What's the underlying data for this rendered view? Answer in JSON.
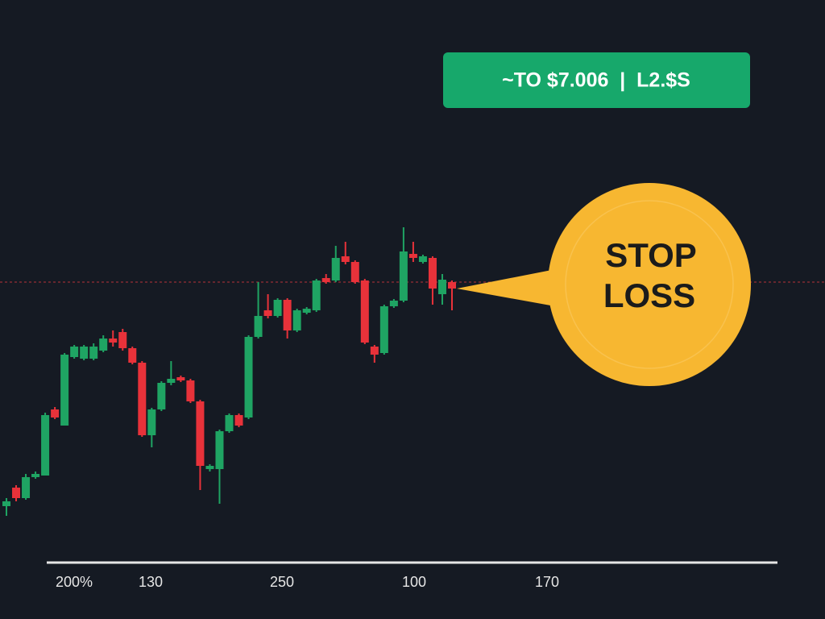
{
  "chart_data": {
    "type": "candlestick",
    "banner": "~TO $7.006  |  L2.$S",
    "annotation": [
      "STOP",
      "LOSS"
    ],
    "x_axis_labels": [
      "200%",
      "130",
      "250",
      "100",
      "170"
    ],
    "ylim": [
      0,
      700
    ],
    "reference_line": 350,
    "up_color": "#1fa463",
    "down_color": "#e8323a",
    "open": [
      72,
      95,
      82,
      108,
      110,
      192,
      172,
      257,
      255,
      255,
      265,
      280,
      288,
      268,
      250,
      160,
      192,
      225,
      232,
      228,
      202,
      118,
      118,
      165,
      185,
      182,
      282,
      315,
      308,
      328,
      290,
      312,
      315,
      355,
      352,
      382,
      375,
      352,
      270,
      262,
      320,
      327,
      385,
      375,
      380,
      335,
      350
    ],
    "high": [
      82,
      98,
      112,
      115,
      188,
      195,
      262,
      272,
      272,
      274,
      284,
      290,
      292,
      270,
      252,
      194,
      227,
      252,
      234,
      230,
      204,
      124,
      167,
      187,
      187,
      284,
      350,
      335,
      330,
      330,
      317,
      319,
      354,
      360,
      395,
      400,
      377,
      354,
      272,
      322,
      329,
      418,
      400,
      384,
      382,
      360,
      352
    ],
    "low": [
      60,
      78,
      80,
      106,
      110,
      180,
      172,
      255,
      253,
      253,
      263,
      270,
      265,
      248,
      158,
      145,
      190,
      222,
      226,
      200,
      92,
      115,
      75,
      163,
      170,
      180,
      280,
      305,
      306,
      280,
      288,
      310,
      313,
      348,
      350,
      372,
      348,
      273,
      250,
      260,
      318,
      325,
      375,
      373,
      322,
      322,
      315
    ],
    "close": [
      78,
      82,
      108,
      112,
      185,
      182,
      260,
      270,
      270,
      270,
      280,
      275,
      268,
      250,
      160,
      192,
      225,
      230,
      228,
      202,
      122,
      122,
      165,
      185,
      172,
      282,
      308,
      308,
      328,
      290,
      315,
      317,
      352,
      350,
      380,
      375,
      350,
      275,
      260,
      320,
      327,
      388,
      380,
      382,
      342,
      353,
      342
    ]
  }
}
